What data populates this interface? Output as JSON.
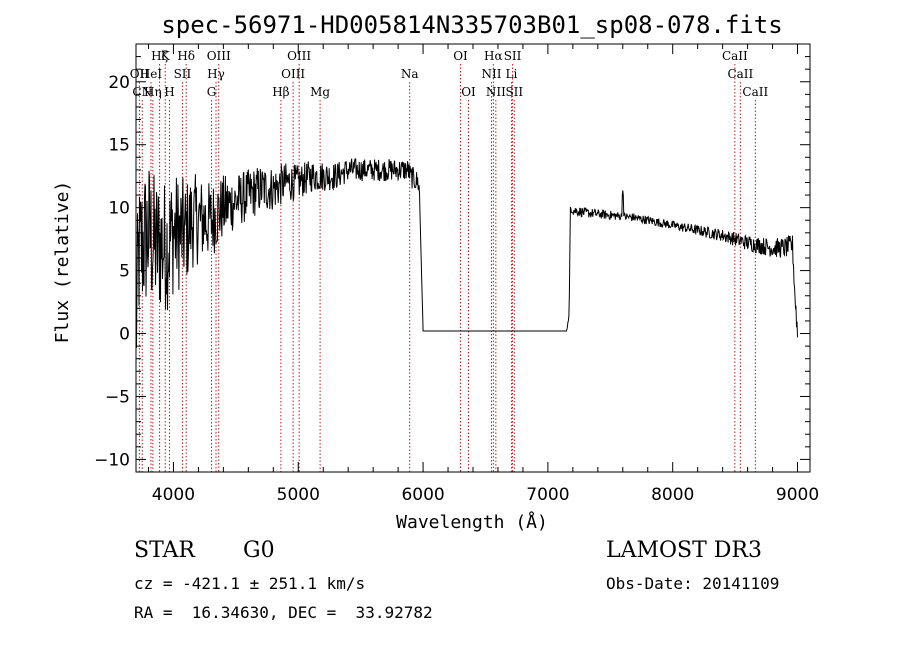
{
  "chart_data": {
    "type": "line",
    "title": "spec-56971-HD005814N335703B01_sp08-078.fits",
    "xlabel": "Wavelength (Å)",
    "ylabel": "Flux (relative)",
    "xlim": [
      3700,
      9100
    ],
    "ylim": [
      -11,
      23
    ],
    "xticks": [
      4000,
      5000,
      6000,
      7000,
      8000,
      9000
    ],
    "yticks": [
      -10,
      -5,
      0,
      5,
      10,
      15,
      20
    ],
    "spectrum_anchors": {
      "x": [
        3700,
        3720,
        3750,
        3800,
        3850,
        3900,
        3950,
        4000,
        4050,
        4100,
        4150,
        4200,
        4300,
        4400,
        4500,
        4600,
        4700,
        4800,
        4900,
        5000,
        5100,
        5200,
        5300,
        5400,
        5500,
        5600,
        5700,
        5800,
        5880,
        5900,
        5960,
        5970,
        6000,
        7150,
        7170,
        7180,
        7200,
        7300,
        7400,
        7500,
        7600,
        7700,
        7800,
        7900,
        8000,
        8100,
        8200,
        8300,
        8400,
        8500,
        8600,
        8700,
        8800,
        8900,
        8960,
        8980,
        9000
      ],
      "y": [
        0,
        6,
        7,
        8,
        7,
        7,
        7,
        8,
        8,
        8,
        9,
        9,
        9,
        10,
        10.5,
        11,
        11.5,
        11.5,
        12,
        12,
        12.5,
        12.5,
        12.5,
        13,
        13,
        13,
        13,
        13,
        13,
        12.5,
        12,
        11.5,
        0.2,
        0.2,
        1.5,
        10,
        9.8,
        9.6,
        9.5,
        9.4,
        9.3,
        9.2,
        9.0,
        8.8,
        8.6,
        8.4,
        8.2,
        8.0,
        7.8,
        7.5,
        7.2,
        7.0,
        6.8,
        6.8,
        7.0,
        3,
        0
      ]
    },
    "noise_amplitude": {
      "x": [
        3700,
        3800,
        4000,
        4200,
        4500,
        4800,
        5000,
        5500,
        5900,
        5960,
        6000,
        7150,
        7200,
        7600,
        8000,
        8400,
        8700,
        9000
      ],
      "y": [
        6,
        6,
        5,
        3.5,
        2.2,
        1.8,
        1.4,
        0.9,
        0.9,
        0.9,
        0,
        0,
        0.4,
        0.35,
        0.35,
        0.5,
        0.7,
        0.9
      ]
    },
    "lines_row1": [
      {
        "label": "Hζ",
        "x": 3889
      },
      {
        "label": "K",
        "x": 3934
      },
      {
        "label": "Hδ",
        "x": 4102
      },
      {
        "label": "OIII",
        "x": 4363
      },
      {
        "label": "OIII",
        "x": 5007
      },
      {
        "label": "OI",
        "x": 6300
      },
      {
        "label": "Hα",
        "x": 6563
      },
      {
        "label": "SII",
        "x": 6717
      },
      {
        "label": "CaII",
        "x": 8498
      }
    ],
    "lines_row2": [
      {
        "label": "OII",
        "x": 3727
      },
      {
        "label": "HeI",
        "x": 3820
      },
      {
        "label": "SII",
        "x": 4072
      },
      {
        "label": "Hγ",
        "x": 4341
      },
      {
        "label": "OIII",
        "x": 4959
      },
      {
        "label": "Na",
        "x": 5893
      },
      {
        "label": "NII",
        "x": 6548
      },
      {
        "label": "Li",
        "x": 6708
      },
      {
        "label": "CaII",
        "x": 8542
      }
    ],
    "lines_row3": [
      {
        "label": "CN",
        "x": 3750
      },
      {
        "label": "Hη",
        "x": 3835
      },
      {
        "label": "H",
        "x": 3968
      },
      {
        "label": "G",
        "x": 4305
      },
      {
        "label": "Hβ",
        "x": 4861
      },
      {
        "label": "Mg",
        "x": 5175
      },
      {
        "label": "OI",
        "x": 6364
      },
      {
        "label": "NII",
        "x": 6583
      },
      {
        "label": "SII",
        "x": 6731
      },
      {
        "label": "CaII",
        "x": 8662
      }
    ],
    "line_color": "#b22222",
    "spectrum_color": "#000000"
  },
  "info": {
    "object_class": "STAR",
    "subclass": "G0",
    "survey": "LAMOST DR3",
    "cz": "cz = -421.1 ± 251.1 km/s",
    "obs_date": "Obs-Date: 20141109",
    "coords": "RA =  16.34630, DEC =  33.92782"
  }
}
